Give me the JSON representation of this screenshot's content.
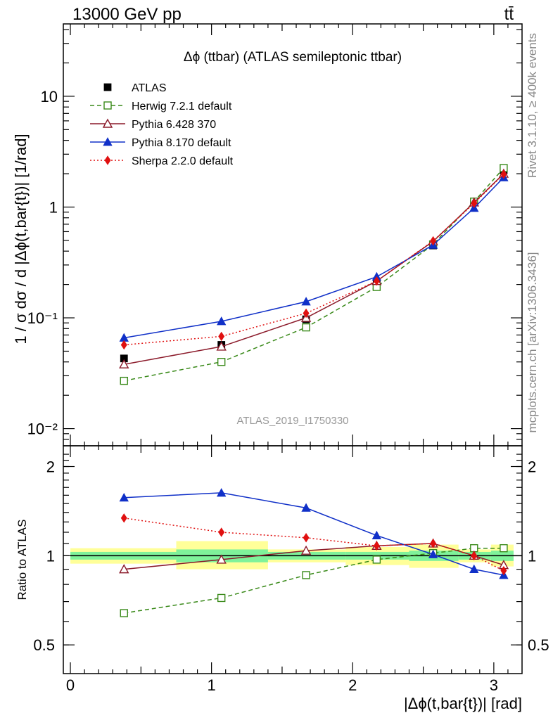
{
  "header": {
    "left": "13000 GeV pp",
    "right": "tt̄"
  },
  "side_labels": {
    "rivet": "Rivet 3.1.10, ≥ 400k events",
    "mcplots": "mcplots.cern.ch [arXiv:1306.3436]"
  },
  "chart_data": [
    {
      "type": "line",
      "title": "Δϕ (ttbar) (ATLAS semileptonic ttbar)",
      "watermark": "ATLAS_2019_I1750330",
      "xlabel": "",
      "ylabel": "1 / σ dσ / d |Δϕ(t,bar{t})| [1/rad]",
      "xlim": [
        -0.05,
        3.2
      ],
      "ylim": [
        0.007,
        45
      ],
      "yscale": "log",
      "yticks": [
        {
          "value": 0.01,
          "label": "10⁻²"
        },
        {
          "value": 0.1,
          "label": "10⁻¹"
        },
        {
          "value": 1,
          "label": "1"
        },
        {
          "value": 10,
          "label": "10"
        }
      ],
      "legend_placement": "top-left",
      "x": [
        0.38,
        1.07,
        1.67,
        2.17,
        2.57,
        2.86,
        3.07
      ],
      "series": [
        {
          "name": "ATLAS",
          "color": "#000000",
          "marker": "square-filled",
          "line": "none",
          "values": [
            0.043,
            0.057,
            0.097,
            0.205,
            0.45,
            1.1,
            2.15
          ]
        },
        {
          "name": "Herwig 7.2.1 default",
          "color": "#3a8a1a",
          "marker": "square-open",
          "line": "dashed",
          "values": [
            0.027,
            0.04,
            0.082,
            0.19,
            0.46,
            1.12,
            2.25
          ]
        },
        {
          "name": "Pythia 6.428 370",
          "color": "#8b1a2a",
          "marker": "triangle-open",
          "line": "solid",
          "values": [
            0.038,
            0.055,
            0.1,
            0.215,
            0.49,
            1.1,
            2.0
          ]
        },
        {
          "name": "Pythia 8.170 default",
          "color": "#1030c8",
          "marker": "triangle-filled",
          "line": "solid",
          "values": [
            0.066,
            0.093,
            0.14,
            0.235,
            0.455,
            0.98,
            1.85
          ]
        },
        {
          "name": "Sherpa 2.2.0 default",
          "color": "#e01010",
          "marker": "diamond-filled",
          "line": "dotted",
          "values": [
            0.057,
            0.068,
            0.11,
            0.215,
            0.495,
            1.08,
            1.98
          ]
        }
      ]
    },
    {
      "type": "line",
      "ylabel": "Ratio to ATLAS",
      "xlabel": "|Δϕ(t,bar{t})| [rad]",
      "xlim": [
        -0.05,
        3.2
      ],
      "ylim": [
        0.4,
        2.35
      ],
      "yscale": "log",
      "xticks": [
        {
          "value": 0,
          "label": "0"
        },
        {
          "value": 1,
          "label": "1"
        },
        {
          "value": 2,
          "label": "2"
        },
        {
          "value": 3,
          "label": "3"
        }
      ],
      "yticks": [
        {
          "value": 0.5,
          "label": "0.5"
        },
        {
          "value": 1,
          "label": "1"
        },
        {
          "value": 2,
          "label": "2"
        }
      ],
      "bins": [
        {
          "lo": 0.0,
          "hi": 0.75,
          "inner": [
            0.97,
            1.03
          ],
          "outer": [
            0.94,
            1.06
          ]
        },
        {
          "lo": 0.75,
          "hi": 1.4,
          "inner": [
            0.95,
            1.05
          ],
          "outer": [
            0.9,
            1.12
          ]
        },
        {
          "lo": 1.4,
          "hi": 1.95,
          "inner": [
            0.97,
            1.03
          ],
          "outer": [
            0.95,
            1.05
          ]
        },
        {
          "lo": 1.95,
          "hi": 2.4,
          "inner": [
            0.97,
            1.03
          ],
          "outer": [
            0.93,
            1.07
          ]
        },
        {
          "lo": 2.4,
          "hi": 2.75,
          "inner": [
            0.96,
            1.04
          ],
          "outer": [
            0.91,
            1.09
          ]
        },
        {
          "lo": 2.75,
          "hi": 2.98,
          "inner": [
            0.97,
            1.03
          ],
          "outer": [
            0.95,
            1.05
          ]
        },
        {
          "lo": 2.98,
          "hi": 3.14,
          "inner": [
            0.96,
            1.04
          ],
          "outer": [
            0.92,
            1.09
          ]
        }
      ],
      "reference": 1,
      "x": [
        0.38,
        1.07,
        1.67,
        2.17,
        2.57,
        2.86,
        3.07
      ],
      "series": [
        {
          "name": "Herwig 7.2.1 default",
          "color": "#3a8a1a",
          "marker": "square-open",
          "line": "dashed",
          "values": [
            0.64,
            0.72,
            0.86,
            0.97,
            1.02,
            1.06,
            1.06
          ]
        },
        {
          "name": "Pythia 6.428 370",
          "color": "#8b1a2a",
          "marker": "triangle-open",
          "line": "solid",
          "values": [
            0.9,
            0.97,
            1.04,
            1.08,
            1.1,
            1.0,
            0.93
          ]
        },
        {
          "name": "Pythia 8.170 default",
          "color": "#1030c8",
          "marker": "triangle-filled",
          "line": "solid",
          "values": [
            1.57,
            1.63,
            1.45,
            1.17,
            1.01,
            0.9,
            0.86
          ]
        },
        {
          "name": "Sherpa 2.2.0 default",
          "color": "#e01010",
          "marker": "diamond-filled",
          "line": "dotted",
          "values": [
            1.34,
            1.2,
            1.15,
            1.08,
            1.1,
            1.0,
            0.89
          ]
        }
      ]
    }
  ]
}
